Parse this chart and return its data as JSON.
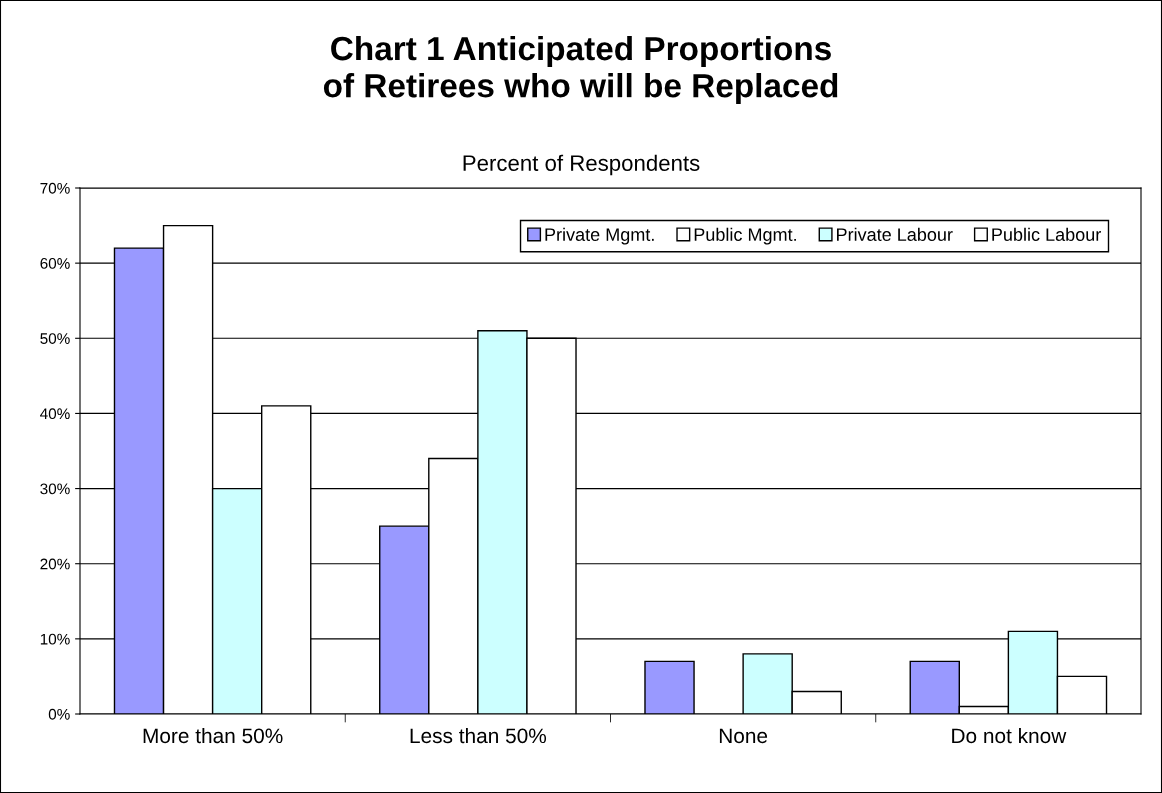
{
  "chart_data": {
    "type": "bar",
    "title": "Chart 1 Anticipated Proportions\nof Retirees who will be Replaced",
    "subtitle": "Percent of Respondents",
    "categories": [
      "More than 50%",
      "Less than 50%",
      "None",
      "Do not know"
    ],
    "series": [
      {
        "name": "Private Mgmt.",
        "color": "#9999ff",
        "values": [
          62,
          25,
          7,
          7
        ]
      },
      {
        "name": "Public Mgmt.",
        "color": "#ffffff",
        "values": [
          65,
          34,
          null,
          1
        ]
      },
      {
        "name": "Private Labour",
        "color": "#ccffff",
        "values": [
          30,
          51,
          8,
          11
        ]
      },
      {
        "name": "Public Labour",
        "color": "#ffffff",
        "values": [
          41,
          50,
          3,
          5
        ]
      }
    ],
    "ylim": [
      0,
      70
    ],
    "yticks": [
      {
        "value": 0,
        "label": "0%"
      },
      {
        "value": 10,
        "label": "10%"
      },
      {
        "value": 20,
        "label": "20%"
      },
      {
        "value": 30,
        "label": "30%"
      },
      {
        "value": 40,
        "label": "40%"
      },
      {
        "value": 50,
        "label": "50%"
      },
      {
        "value": 60,
        "label": "60%"
      },
      {
        "value": 70,
        "label": "70%"
      }
    ],
    "grid": "y",
    "legend": "top right"
  }
}
